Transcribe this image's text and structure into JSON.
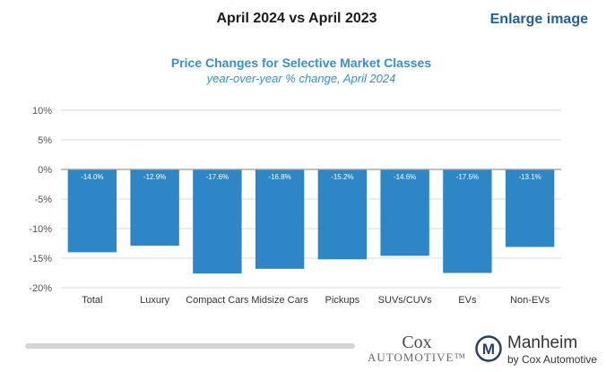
{
  "header": {
    "title": "April 2024 vs April 2023",
    "enlarge_label": "Enlarge image"
  },
  "colors": {
    "bar": "#2f86c6",
    "title": "#3a8fc8",
    "axis_text": "#555555",
    "grid": "#d9d9d9"
  },
  "chart_data": {
    "type": "bar",
    "title": "Price Changes for Selective Market Classes",
    "subtitle": "year-over-year % change, April 2024",
    "categories": [
      "Total",
      "Luxury",
      "Compact Cars",
      "Midsize Cars",
      "Pickups",
      "SUVs/CUVs",
      "EVs",
      "Non-EVs"
    ],
    "values": [
      -14.0,
      -12.9,
      -17.6,
      -16.8,
      -15.2,
      -14.6,
      -17.5,
      -13.1
    ],
    "data_labels": [
      "-14.0%",
      "-12.9%",
      "-17.6%",
      "-16.8%",
      "-15.2%",
      "-14.6%",
      "-17.5%",
      "-13.1%"
    ],
    "yticks": [
      10,
      5,
      0,
      -5,
      -10,
      -15,
      -20
    ],
    "ytick_labels": [
      "10%",
      "5%",
      "0%",
      "-5%",
      "-10%",
      "-15%",
      "-20%"
    ],
    "ylim": [
      -20,
      10
    ],
    "xlabel": "",
    "ylabel": "",
    "grid": true
  },
  "logos": {
    "cox_top": "Cox",
    "cox_bottom": "AUTOMOTIVE™",
    "manheim_letter": "M",
    "manheim_name": "Manheim",
    "manheim_sub": "by Cox Automotive"
  }
}
